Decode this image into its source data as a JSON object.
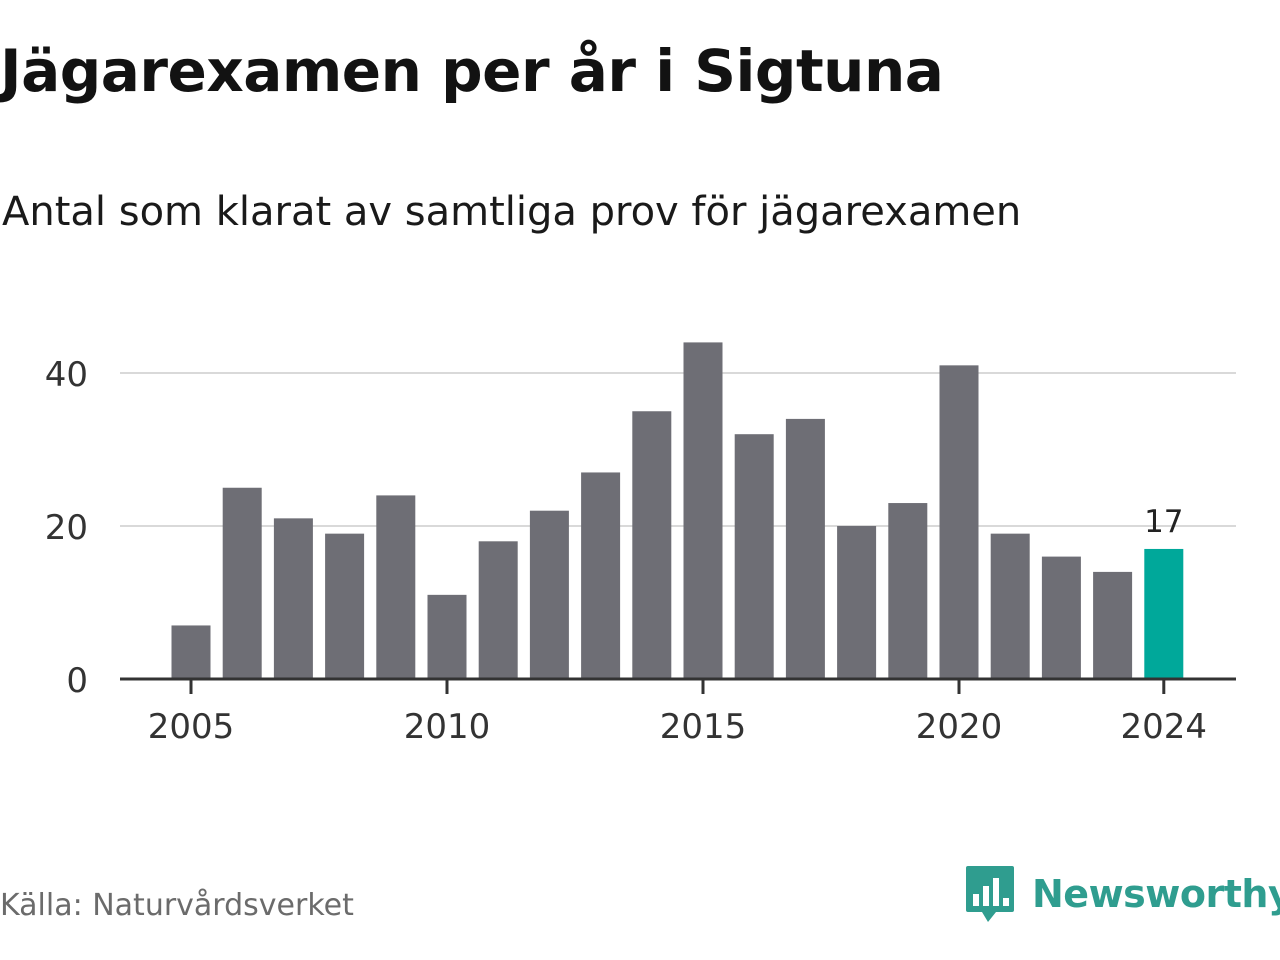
{
  "title": "Jägarexamen per år i Sigtuna",
  "subtitle": "Antal som klarat av samtliga prov för jägarexamen",
  "source": "Källa: Naturvårdsverket",
  "brand": "Newsworthy",
  "colors": {
    "bar": "#6e6e75",
    "highlight": "#00a89a",
    "grid": "#d9d9d9",
    "axis": "#333333",
    "brand": "#2f9d8f"
  },
  "chart_data": {
    "type": "bar",
    "title": "Jägarexamen per år i Sigtuna",
    "subtitle": "Antal som klarat av samtliga prov för jägarexamen",
    "xlabel": "",
    "ylabel": "",
    "categories": [
      2005,
      2006,
      2007,
      2008,
      2009,
      2010,
      2011,
      2012,
      2013,
      2014,
      2015,
      2016,
      2017,
      2018,
      2019,
      2020,
      2021,
      2022,
      2023,
      2024
    ],
    "values": [
      7,
      25,
      21,
      19,
      24,
      11,
      18,
      22,
      27,
      35,
      44,
      32,
      34,
      20,
      23,
      41,
      19,
      16,
      14,
      17
    ],
    "highlight": {
      "category": 2024,
      "label": "17"
    },
    "x_tick_labels": [
      "2005",
      "2010",
      "2015",
      "2020",
      "2024"
    ],
    "y_ticks": [
      0,
      20,
      40
    ],
    "ylim": [
      0,
      45
    ],
    "grid": true,
    "legend": "none"
  }
}
